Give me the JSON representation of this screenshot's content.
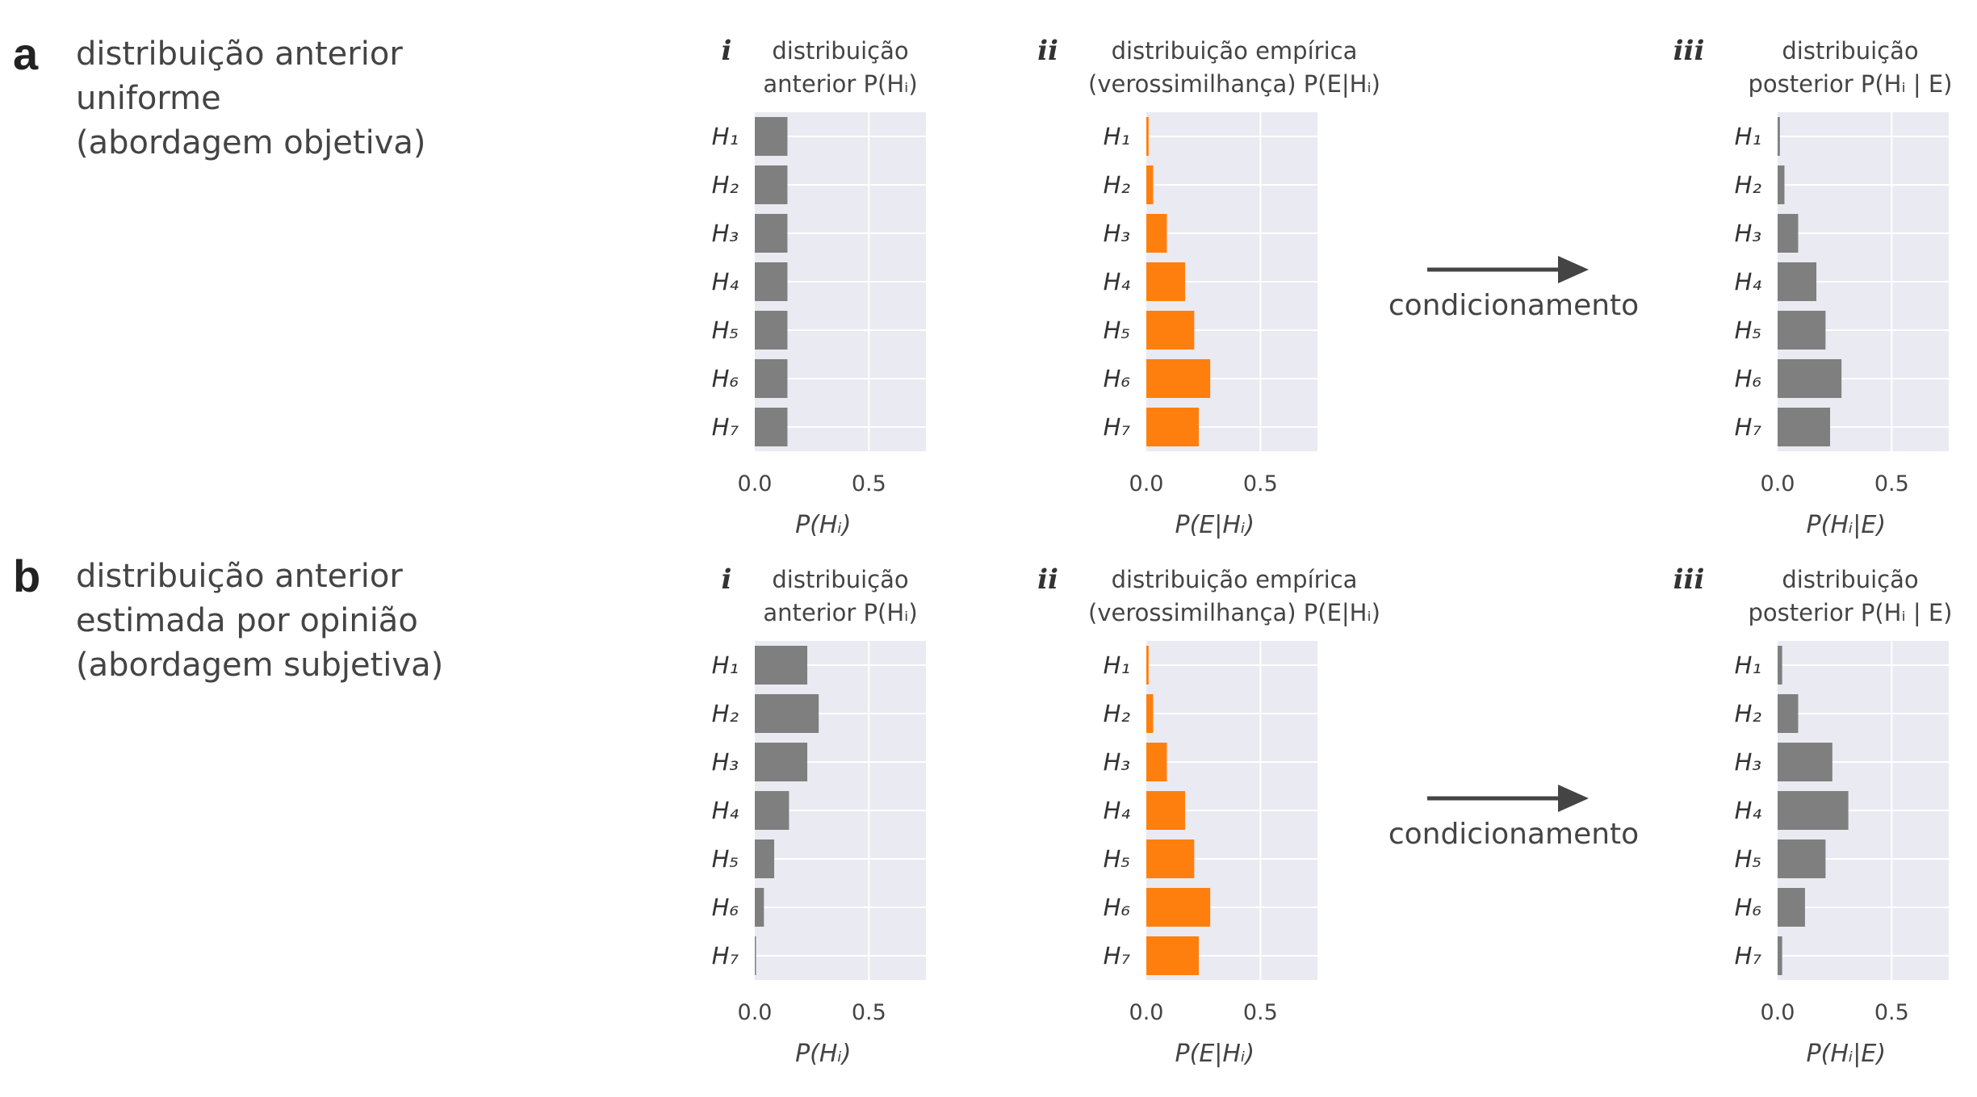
{
  "rows": [
    {
      "letter": "a",
      "desc": [
        "distribuição anterior",
        "uniforme",
        "(abordagem objetiva)"
      ],
      "arrow_label": "condicionamento"
    },
    {
      "letter": "b",
      "desc": [
        "distribuição anterior",
        "estimada por opinião",
        "(abordagem subjetiva)"
      ],
      "arrow_label": "condicionamento"
    }
  ],
  "chart_data": [
    {
      "type": "bar",
      "orientation": "horizontal",
      "row": "a",
      "roman": "i",
      "title": [
        "distribuição",
        "anterior P(Hᵢ)"
      ],
      "xlabel": "P(Hᵢ)",
      "categories": [
        "H1",
        "H2",
        "H3",
        "H4",
        "H5",
        "H6",
        "H7"
      ],
      "values": [
        0.143,
        0.143,
        0.143,
        0.143,
        0.143,
        0.143,
        0.143
      ],
      "xlim": [
        0,
        0.75
      ],
      "xticks": [
        "0.0",
        "0.5"
      ],
      "color": "#7f7f7f",
      "grid": true
    },
    {
      "type": "bar",
      "orientation": "horizontal",
      "row": "a",
      "roman": "ii",
      "title": [
        "distribuição empírica",
        "(verossimilhança) P(E|Hᵢ)"
      ],
      "xlabel": "P(E|Hᵢ)",
      "categories": [
        "H1",
        "H2",
        "H3",
        "H4",
        "H5",
        "H6",
        "H7"
      ],
      "values": [
        0.01,
        0.03,
        0.09,
        0.17,
        0.21,
        0.28,
        0.23
      ],
      "xlim": [
        0,
        0.75
      ],
      "xticks": [
        "0.0",
        "0.5"
      ],
      "color": "#ff7f0e",
      "grid": true
    },
    {
      "type": "bar",
      "orientation": "horizontal",
      "row": "a",
      "roman": "iii",
      "title": [
        "distribuição",
        "posterior P(Hᵢ | E)"
      ],
      "xlabel": "P(Hᵢ|E)",
      "categories": [
        "H1",
        "H2",
        "H3",
        "H4",
        "H5",
        "H6",
        "H7"
      ],
      "values": [
        0.01,
        0.03,
        0.09,
        0.17,
        0.21,
        0.28,
        0.23
      ],
      "xlim": [
        0,
        0.75
      ],
      "xticks": [
        "0.0",
        "0.5"
      ],
      "color": "#7f7f7f",
      "grid": true
    },
    {
      "type": "bar",
      "orientation": "horizontal",
      "row": "b",
      "roman": "i",
      "title": [
        "distribuição",
        "anterior P(Hᵢ)"
      ],
      "xlabel": "P(Hᵢ)",
      "categories": [
        "H1",
        "H2",
        "H3",
        "H4",
        "H5",
        "H6",
        "H7"
      ],
      "values": [
        0.23,
        0.28,
        0.23,
        0.15,
        0.085,
        0.04,
        0.005
      ],
      "xlim": [
        0,
        0.75
      ],
      "xticks": [
        "0.0",
        "0.5"
      ],
      "color": "#7f7f7f",
      "grid": true
    },
    {
      "type": "bar",
      "orientation": "horizontal",
      "row": "b",
      "roman": "ii",
      "title": [
        "distribuição empírica",
        "(verossimilhança) P(E|Hᵢ)"
      ],
      "xlabel": "P(E|Hᵢ)",
      "categories": [
        "H1",
        "H2",
        "H3",
        "H4",
        "H5",
        "H6",
        "H7"
      ],
      "values": [
        0.01,
        0.03,
        0.09,
        0.17,
        0.21,
        0.28,
        0.23
      ],
      "xlim": [
        0,
        0.75
      ],
      "xticks": [
        "0.0",
        "0.5"
      ],
      "color": "#ff7f0e",
      "grid": true
    },
    {
      "type": "bar",
      "orientation": "horizontal",
      "row": "b",
      "roman": "iii",
      "title": [
        "distribuição",
        "posterior P(Hᵢ | E)"
      ],
      "xlabel": "P(Hᵢ|E)",
      "categories": [
        "H1",
        "H2",
        "H3",
        "H4",
        "H5",
        "H6",
        "H7"
      ],
      "values": [
        0.02,
        0.09,
        0.24,
        0.31,
        0.21,
        0.12,
        0.02
      ],
      "xlim": [
        0,
        0.75
      ],
      "xticks": [
        "0.0",
        "0.5"
      ],
      "color": "#7f7f7f",
      "grid": true
    }
  ],
  "colors": {
    "plot_bg": "#eaeaf2",
    "grid": "#ffffff",
    "arrow": "#444444"
  }
}
